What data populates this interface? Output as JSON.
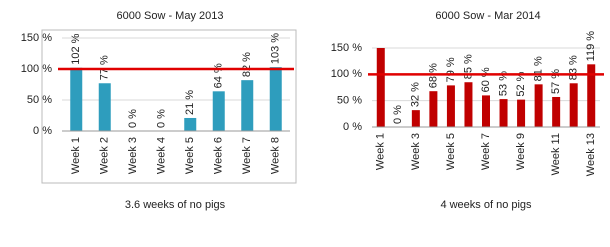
{
  "chart_data": [
    {
      "type": "bar",
      "title": "6000 Sow - May 2013",
      "categories": [
        "Week 1",
        "Week 2",
        "Week 3",
        "Week 4",
        "Week 5",
        "Week 6",
        "Week 7",
        "Week 8"
      ],
      "values": [
        102,
        77,
        0,
        0,
        21,
        64,
        82,
        103
      ],
      "value_labels": [
        "102 %",
        "77 %",
        "0 %",
        "0 %",
        "21 %",
        "64 %",
        "82 %",
        "103 %"
      ],
      "color": "#2e9dbd",
      "ylim": [
        0,
        150
      ],
      "yticks": [
        {
          "value": 0,
          "label": "0 %"
        },
        {
          "value": 50,
          "label": "50 %"
        },
        {
          "value": 100,
          "label": "100 %"
        },
        {
          "value": 150,
          "label": "150 %"
        }
      ],
      "grid": true,
      "reference_line": 100,
      "reference_color": "#e00000",
      "annotation": "3.6 weeks of no pigs"
    },
    {
      "type": "bar",
      "title": "6000 Sow - Mar 2014",
      "categories": [
        "Week 1",
        null,
        "Week 3",
        null,
        "Week 5",
        null,
        "Week 7",
        null,
        "Week 9",
        null,
        "Week 11",
        null,
        "Week 13"
      ],
      "values": [
        150,
        0,
        32,
        68,
        79,
        85,
        60,
        53,
        52,
        81,
        57,
        83,
        119
      ],
      "value_labels": [
        null,
        "0 %",
        "32 %",
        "68 %",
        "79 %",
        "85 %",
        "60 %",
        "53 %",
        "52 %",
        "81 %",
        "57 %",
        "83 %",
        "119 %"
      ],
      "color": "#c00000",
      "ylim": [
        0,
        150
      ],
      "yticks": [
        {
          "value": 0,
          "label": "0 %"
        },
        {
          "value": 50,
          "label": "50 %"
        },
        {
          "value": 100,
          "label": "100 %"
        },
        {
          "value": 150,
          "label": "150 %"
        }
      ],
      "grid": true,
      "reference_line": 100,
      "reference_color": "#e00000",
      "annotation": "4 weeks of no pigs"
    }
  ]
}
